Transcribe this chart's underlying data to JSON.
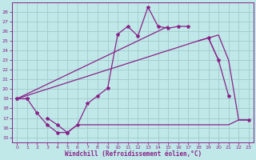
{
  "bg_color": "#c0e8e8",
  "grid_color": "#a0cccc",
  "line_color": "#882288",
  "xlabel": "Windchill (Refroidissement éolien,°C)",
  "xlim": [
    -0.5,
    23.5
  ],
  "ylim": [
    14.5,
    29.0
  ],
  "yticks": [
    15,
    16,
    17,
    18,
    19,
    20,
    21,
    22,
    23,
    24,
    25,
    26,
    27,
    28
  ],
  "xticks": [
    0,
    1,
    2,
    3,
    4,
    5,
    6,
    7,
    8,
    9,
    10,
    11,
    12,
    13,
    14,
    15,
    16,
    17,
    18,
    19,
    20,
    21,
    22,
    23
  ],
  "x": [
    0,
    1,
    2,
    3,
    4,
    5,
    6,
    7,
    8,
    9,
    10,
    11,
    12,
    13,
    14,
    15,
    16,
    17,
    18,
    19,
    20,
    21,
    22,
    23
  ],
  "y_zigzag": [
    19.0,
    19.0,
    null,
    17.0,
    16.3,
    15.5,
    16.3,
    18.5,
    19.3,
    20.1,
    25.7,
    26.5,
    25.5,
    28.5,
    26.5,
    26.3,
    26.5,
    26.5,
    null,
    25.3,
    23.0,
    19.3,
    null,
    16.8
  ],
  "y_low_start": [
    19.0,
    19.0,
    17.5,
    16.3,
    15.5,
    15.5,
    null,
    null,
    null,
    null,
    null,
    null,
    null,
    null,
    null,
    null,
    null,
    null,
    null,
    null,
    null,
    null,
    null,
    null
  ],
  "y_flat": [
    null,
    null,
    null,
    null,
    null,
    15.5,
    16.3,
    16.3,
    16.3,
    16.3,
    16.3,
    16.3,
    16.3,
    16.3,
    16.3,
    16.3,
    16.3,
    16.3,
    16.3,
    16.3,
    16.3,
    16.3,
    16.8,
    16.8
  ],
  "y_diag_lower": [
    19.0,
    19.33,
    19.67,
    20.0,
    20.33,
    20.67,
    21.0,
    21.33,
    21.67,
    22.0,
    22.33,
    22.67,
    23.0,
    23.33,
    23.67,
    24.0,
    24.33,
    24.67,
    25.0,
    25.3,
    23.0,
    null,
    null,
    null
  ],
  "y_diag_upper": [
    19.0,
    19.5,
    20.0,
    20.5,
    21.0,
    21.5,
    22.0,
    22.5,
    23.0,
    23.5,
    24.0,
    24.5,
    25.0,
    25.5,
    26.0,
    26.5,
    null,
    null,
    null,
    null,
    null,
    null,
    null,
    null
  ],
  "y_diag_upper2": [
    null,
    null,
    null,
    null,
    null,
    null,
    null,
    null,
    null,
    null,
    null,
    null,
    null,
    null,
    null,
    null,
    null,
    null,
    25.0,
    25.3,
    25.6,
    23.0,
    16.8,
    16.8
  ]
}
